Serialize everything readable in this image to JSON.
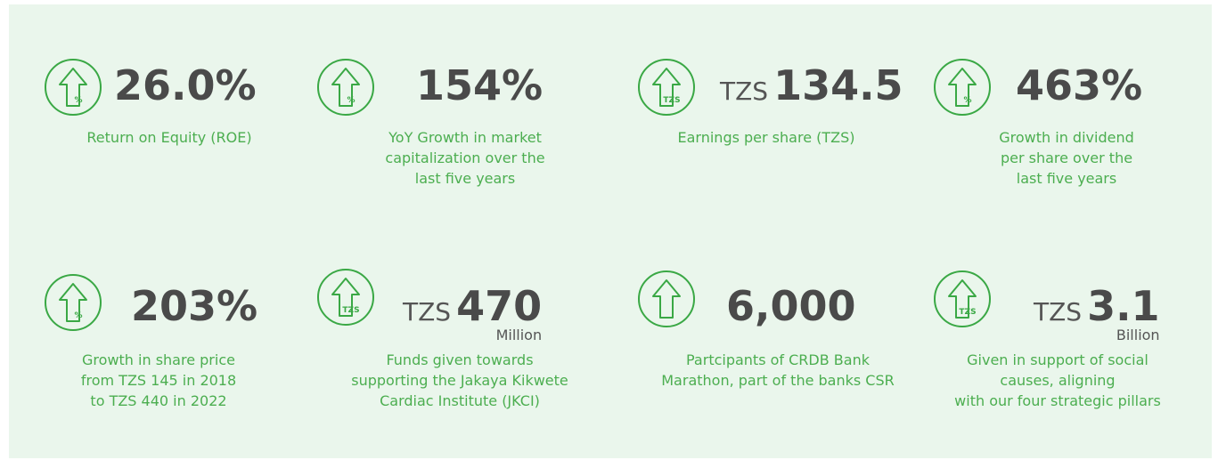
{
  "items": [
    {
      "icon_text": "%",
      "value": "26.0%",
      "description": [
        "Return on Equity (ROE)"
      ]
    },
    {
      "icon_text": "%",
      "value": "154%",
      "description": [
        "YoY Growth in market",
        "capitalization over the",
        "last five years"
      ]
    },
    {
      "icon_text": "TZS",
      "prefix": "TZS",
      "value": "134.5",
      "description": [
        "Earnings per share (TZS)"
      ]
    },
    {
      "icon_text": "%",
      "value": "463%",
      "description": [
        "Growth in dividend",
        "per share over the",
        "last five years"
      ]
    },
    {
      "icon_text": "%",
      "value": "203%",
      "description": [
        "Growth in share price",
        "from TZS 145 in 2018",
        "to TZS 440 in 2022"
      ]
    },
    {
      "icon_text": "TZS",
      "prefix": "TZS",
      "value": "470",
      "suffix": "Million",
      "description": [
        "Funds given towards",
        "supporting the Jakaya Kikwete",
        "Cardiac Institute (JKCI)"
      ]
    },
    {
      "value": "6,000",
      "description": [
        "Partcipants of CRDB Bank",
        "Marathon, part of the banks CSR"
      ]
    },
    {
      "icon_text": "TZS",
      "prefix": "TZS",
      "value": "3.1",
      "suffix": "Billion",
      "description": [
        "Given in support of social",
        "causes, aligning",
        "with our four strategic pillars"
      ]
    }
  ]
}
